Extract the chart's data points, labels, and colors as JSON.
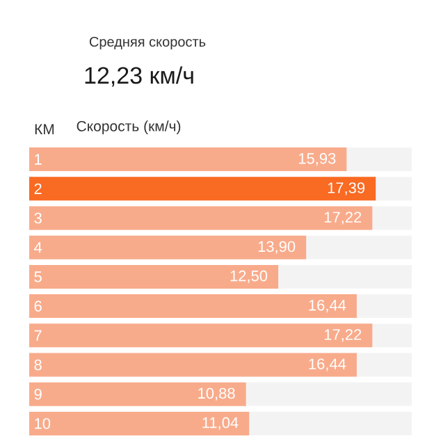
{
  "chart_data": {
    "type": "bar",
    "orientation": "horizontal",
    "title": "Средняя скорость",
    "subtitle": "12,23 км/ч",
    "ylabel": "КМ",
    "xlabel": "Скорость (км/ч)",
    "categories": [
      "1",
      "2",
      "3",
      "4",
      "5",
      "6",
      "7",
      "8",
      "9",
      "10"
    ],
    "values": [
      15.93,
      17.39,
      17.22,
      13.9,
      12.5,
      16.44,
      17.22,
      16.44,
      10.88,
      11.04
    ],
    "value_labels": [
      "15,93",
      "17,39",
      "17,22",
      "13,90",
      "12,50",
      "16,44",
      "17,22",
      "16,44",
      "10,88",
      "11,04"
    ],
    "colors": [
      "#f8ab8b",
      "#f96a22",
      "#f8ab8b",
      "#f8ab8b",
      "#f8ab8b",
      "#f8ab8b",
      "#f8ab8b",
      "#f8ab8b",
      "#f8ab8b",
      "#f8ab8b"
    ],
    "xlim": [
      0,
      19.2
    ]
  }
}
